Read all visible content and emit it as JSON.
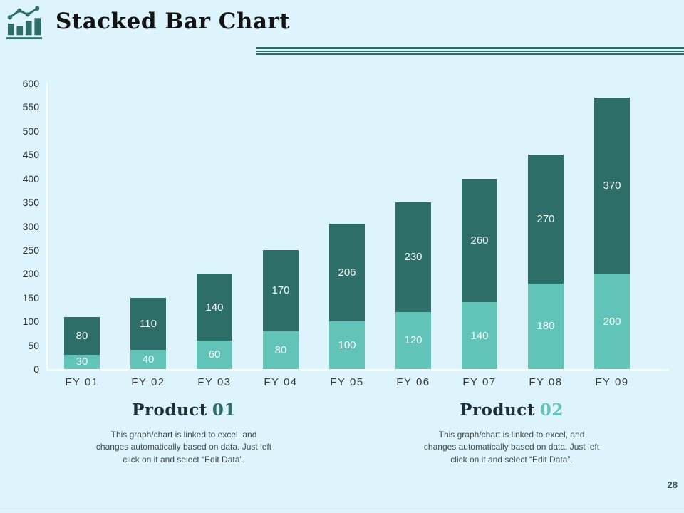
{
  "slide": {
    "title": "Stacked Bar Chart",
    "page_number": "28",
    "background_color": "#ddf4fc",
    "accent_dark": "#2d6e68",
    "accent_light": "#62c4b8"
  },
  "chart_data": {
    "type": "bar",
    "stacked": true,
    "title": "",
    "xlabel": "",
    "ylabel": "",
    "categories": [
      "FY 01",
      "FY 02",
      "FY 03",
      "FY 04",
      "FY 05",
      "FY 06",
      "FY 07",
      "FY 08",
      "FY 09"
    ],
    "series": [
      {
        "name": "Product 01",
        "position": "bottom",
        "color": "#62c4b8",
        "values": [
          30,
          40,
          60,
          80,
          100,
          120,
          140,
          180,
          200
        ]
      },
      {
        "name": "Product 02",
        "position": "top",
        "color": "#2d6e68",
        "values": [
          80,
          110,
          140,
          170,
          206,
          230,
          260,
          270,
          370
        ]
      }
    ],
    "totals": [
      110,
      150,
      200,
      250,
      306,
      350,
      400,
      450,
      570
    ],
    "ylim": [
      0,
      600
    ],
    "ytick_step": 50,
    "grid": false,
    "legend": "none",
    "value_labels": {
      "color": "#ffffff",
      "placement": "centered in each segment"
    }
  },
  "footers": [
    {
      "title_prefix": "Product",
      "title_number": "01",
      "number_color": "#2d6e68",
      "description": "This graph/chart is linked to excel, and changes automatically based on data. Just left click on it and select “Edit Data”."
    },
    {
      "title_prefix": "Product",
      "title_number": "02",
      "number_color": "#62c4b8",
      "description": "This graph/chart is linked to excel, and changes automatically based on data. Just left click on it and select “Edit Data”."
    }
  ],
  "icons": {
    "header_icon": "bar-chart-with-trend-line-icon"
  }
}
